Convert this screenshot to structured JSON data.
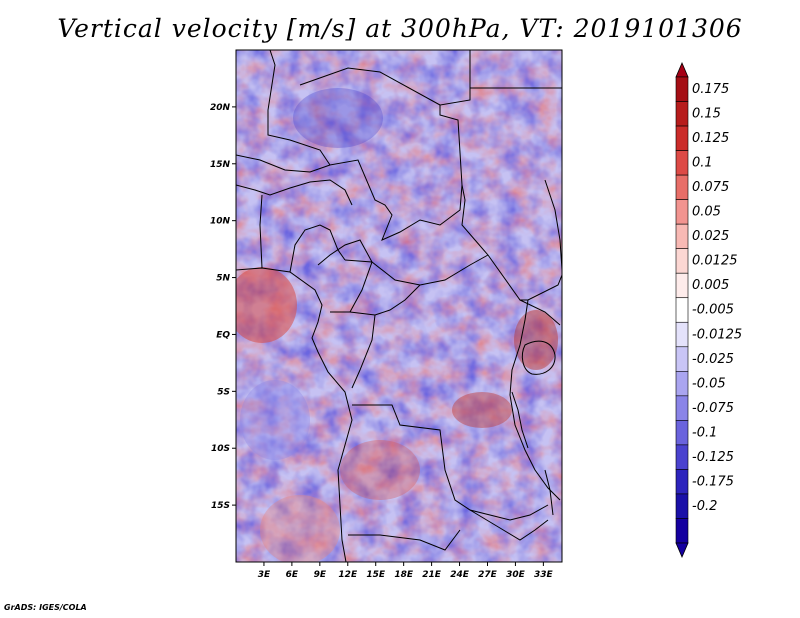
{
  "title": "Vertical velocity [m/s] at 300hPa, VT: 2019101306",
  "credit": "GrADS: IGES/COLA",
  "map": {
    "lat_labels": [
      {
        "label": "20N",
        "lat": 20
      },
      {
        "label": "15N",
        "lat": 15
      },
      {
        "label": "10N",
        "lat": 10
      },
      {
        "label": "5N",
        "lat": 5
      },
      {
        "label": "EQ",
        "lat": 0
      },
      {
        "label": "5S",
        "lat": -5
      },
      {
        "label": "10S",
        "lat": -10
      },
      {
        "label": "15S",
        "lat": -15
      }
    ],
    "lon_labels": [
      {
        "label": "3E",
        "lon": 3
      },
      {
        "label": "6E",
        "lon": 6
      },
      {
        "label": "9E",
        "lon": 9
      },
      {
        "label": "12E",
        "lon": 12
      },
      {
        "label": "15E",
        "lon": 15
      },
      {
        "label": "18E",
        "lon": 18
      },
      {
        "label": "21E",
        "lon": 21
      },
      {
        "label": "24E",
        "lon": 24
      },
      {
        "label": "27E",
        "lon": 27
      },
      {
        "label": "30E",
        "lon": 30
      },
      {
        "label": "33E",
        "lon": 33
      }
    ],
    "lon_range": [
      0,
      35
    ],
    "lat_range": [
      -20,
      25
    ]
  },
  "colorbar": {
    "levels": [
      {
        "label": "0.175",
        "color": "#a50f15"
      },
      {
        "label": "0.15",
        "color": "#b71c1c"
      },
      {
        "label": "0.125",
        "color": "#cb2c2a"
      },
      {
        "label": "0.1",
        "color": "#dd4a46"
      },
      {
        "label": "0.075",
        "color": "#e86e68"
      },
      {
        "label": "0.05",
        "color": "#f29490"
      },
      {
        "label": "0.025",
        "color": "#f8b9b4"
      },
      {
        "label": "0.0125",
        "color": "#fcd7d3"
      },
      {
        "label": "0.005",
        "color": "#feeceb"
      },
      {
        "label": "-0.005",
        "color": "#ffffff"
      },
      {
        "label": "-0.0125",
        "color": "#e4e2fb"
      },
      {
        "label": "-0.025",
        "color": "#c9c5f6"
      },
      {
        "label": "-0.05",
        "color": "#aaa5f0"
      },
      {
        "label": "-0.075",
        "color": "#8a84e8"
      },
      {
        "label": "-0.1",
        "color": "#6a63dd"
      },
      {
        "label": "-0.125",
        "color": "#4a42cf"
      },
      {
        "label": "-0.175",
        "color": "#2d24bd"
      },
      {
        "label": "-0.2",
        "color": "#1a10a8"
      }
    ],
    "top_color": "#a50015",
    "bottom_color": "#1500a0"
  }
}
